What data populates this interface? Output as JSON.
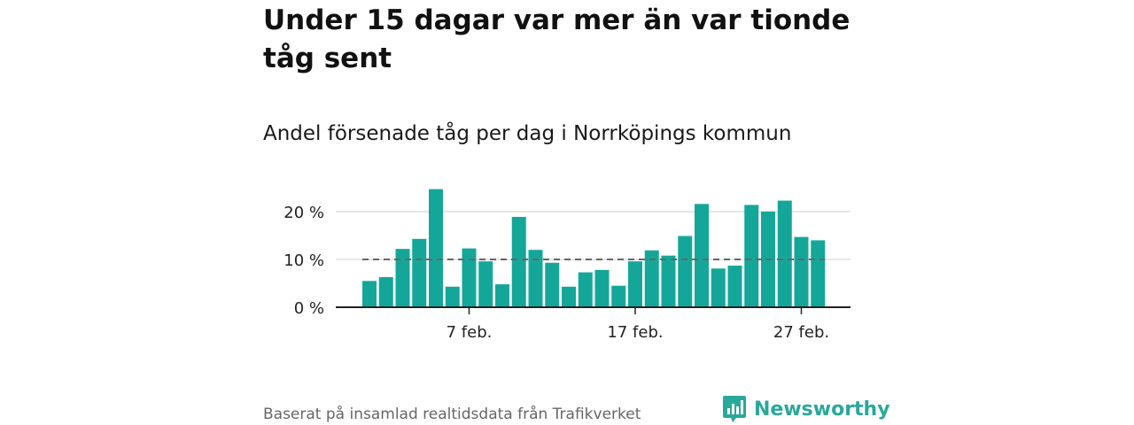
{
  "title": "Under 15 dagar var mer än var tionde tåg sent",
  "subtitle": "Andel försenade tåg per dag i Norrköpings kommun",
  "footer": "Baserat på insamlad realtidsdata från Trafikverket",
  "brand": {
    "name": "Newsworthy",
    "icon": "newsworthy-logo-icon"
  },
  "colors": {
    "bar": "#14a799",
    "reference_line": "#666666",
    "grid": "#dddddd",
    "brand": "#2aa89a"
  },
  "chart_data": {
    "type": "bar",
    "x": [
      "1 feb.",
      "2 feb.",
      "3 feb.",
      "4 feb.",
      "5 feb.",
      "6 feb.",
      "7 feb.",
      "8 feb.",
      "9 feb.",
      "10 feb.",
      "11 feb.",
      "12 feb.",
      "13 feb.",
      "14 feb.",
      "15 feb.",
      "16 feb.",
      "17 feb.",
      "18 feb.",
      "19 feb.",
      "20 feb.",
      "21 feb.",
      "22 feb.",
      "23 feb.",
      "24 feb.",
      "25 feb.",
      "26 feb.",
      "27 feb.",
      "28 feb."
    ],
    "values": [
      5.5,
      6.3,
      12.2,
      14.3,
      24.7,
      4.3,
      12.3,
      9.6,
      4.8,
      18.9,
      12.0,
      9.3,
      4.3,
      7.3,
      7.8,
      4.5,
      9.6,
      11.9,
      10.8,
      14.9,
      21.6,
      8.1,
      8.7,
      21.4,
      20.0,
      22.3,
      14.7,
      14.0
    ],
    "reference_line": 10,
    "y_ticks": [
      {
        "value": 0,
        "label": "0 %"
      },
      {
        "value": 10,
        "label": "10 %"
      },
      {
        "value": 20,
        "label": "20 %"
      }
    ],
    "x_ticks": [
      {
        "index": 6,
        "label": "7 feb."
      },
      {
        "index": 16,
        "label": "17 feb."
      },
      {
        "index": 26,
        "label": "27 feb."
      }
    ],
    "ylim": [
      0,
      26
    ],
    "grid": true,
    "xlabel": "",
    "ylabel": ""
  }
}
